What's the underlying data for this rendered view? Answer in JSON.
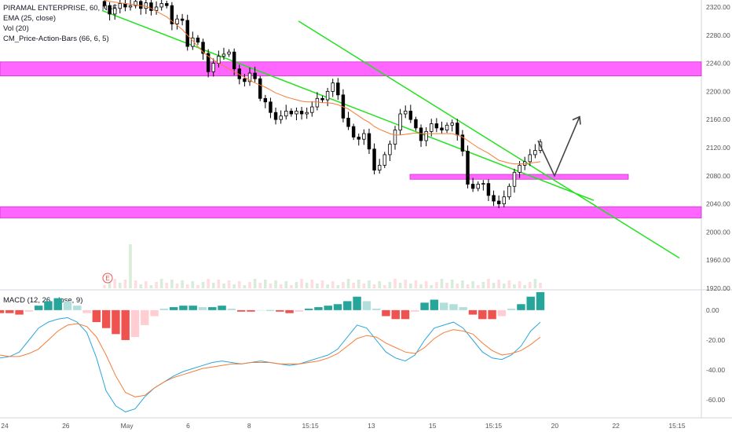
{
  "header": {
    "symbol_line": "PIRAMAL ENTERPRISE, 60, NSE",
    "indicators": [
      "EMA (25, close)",
      "Vol (20)",
      "CM_Price-Action-Bars (66, 6, 5)"
    ],
    "macd_label": "MACD (12, 26, close, 9)",
    "event_marker": "E"
  },
  "colors": {
    "up_candle": "#ffffff",
    "down_candle": "#000000",
    "ema": "#f57c38",
    "channel": "#22e21e",
    "zone": "#ff66ff",
    "macd_line": "#2ca6d9",
    "signal_line": "#f57c38",
    "hist_pos_strong": "#26a69a",
    "hist_pos_weak": "#b2dfdb",
    "hist_neg_strong": "#ef5350",
    "hist_neg_weak": "#ffcdd2"
  },
  "chart_data": [
    {
      "type": "candlestick",
      "title": "PIRAMAL ENTERPRISE, 60, NSE",
      "price_ticks": [
        "2320.00",
        "2280.00",
        "2240.00",
        "2200.00",
        "2160.00",
        "2120.00",
        "2080.00",
        "2040.00",
        "2000.00",
        "1960.00",
        "1920.00"
      ],
      "x_ticks": [
        "24",
        "26",
        "May",
        "6",
        "8",
        "15:15",
        "13",
        "15",
        "15:15",
        "20",
        "22",
        "15:15"
      ],
      "ylim": [
        1920,
        2330
      ],
      "closes": [
        2322,
        2310,
        2318,
        2325,
        2320,
        2322,
        2328,
        2318,
        2326,
        2315,
        2320,
        2325,
        2322,
        2296,
        2303,
        2301,
        2264,
        2276,
        2270,
        2254,
        2228,
        2240,
        2250,
        2253,
        2256,
        2232,
        2218,
        2214,
        2226,
        2218,
        2190,
        2185,
        2170,
        2160,
        2165,
        2172,
        2168,
        2172,
        2168,
        2170,
        2178,
        2190,
        2188,
        2200,
        2212,
        2195,
        2162,
        2150,
        2135,
        2132,
        2140,
        2118,
        2088,
        2095,
        2110,
        2125,
        2145,
        2168,
        2172,
        2160,
        2148,
        2130,
        2143,
        2154,
        2148,
        2145,
        2152,
        2155,
        2138,
        2115,
        2068,
        2062,
        2068,
        2069,
        2052,
        2044,
        2040,
        2050,
        2065,
        2085,
        2095,
        2100,
        2110,
        2116,
        2128
      ],
      "ema25": [
        2330,
        2328,
        2327,
        2326,
        2325,
        2324,
        2323,
        2322,
        2321,
        2318,
        2314,
        2310,
        2306,
        2300,
        2294,
        2288,
        2280,
        2272,
        2264,
        2256,
        2250,
        2245,
        2240,
        2236,
        2232,
        2228,
        2224,
        2220,
        2216,
        2212,
        2209,
        2206,
        2202,
        2198,
        2195,
        2192,
        2190,
        2188,
        2186,
        2185,
        2185,
        2185,
        2184,
        2184,
        2183,
        2181,
        2178,
        2175,
        2170,
        2165,
        2160,
        2156,
        2150,
        2146,
        2143,
        2140,
        2138,
        2138,
        2139,
        2140,
        2141,
        2140,
        2140,
        2140,
        2140,
        2140,
        2140,
        2140,
        2138,
        2135,
        2130,
        2125,
        2120,
        2116,
        2112,
        2107,
        2102,
        2100,
        2098,
        2097,
        2097,
        2097,
        2098,
        2099,
        2100
      ],
      "zones": [
        [
          2222,
          2242
        ],
        [
          2075,
          2082
        ],
        [
          2020,
          2036
        ]
      ],
      "channel_upper": [
        [
          2300,
          2352
        ],
        [
          1963,
          1958
        ]
      ],
      "channel_lower": [
        [
          2315,
          2298
        ],
        [
          2045,
          1950
        ]
      ],
      "arrow_path": [
        2130,
        2080,
        2164
      ]
    },
    {
      "type": "bar",
      "title": "MACD (12, 26, close, 9)",
      "y_ticks": [
        "0.00",
        "-20.00",
        "-40.00",
        "-60.00"
      ],
      "ylim": [
        -72,
        12
      ],
      "macd": [
        -32,
        -31,
        -28,
        -20,
        -12,
        -8,
        -6,
        -5,
        -8,
        -15,
        -32,
        -54,
        -64,
        -68,
        -66,
        -58,
        -52,
        -48,
        -44,
        -41,
        -39,
        -37,
        -35,
        -34,
        -35,
        -36,
        -35,
        -34,
        -35,
        -36,
        -37,
        -36,
        -34,
        -32,
        -30,
        -26,
        -18,
        -10,
        -12,
        -20,
        -28,
        -32,
        -34,
        -30,
        -20,
        -12,
        -10,
        -8,
        -12,
        -20,
        -28,
        -32,
        -33,
        -30,
        -24,
        -14,
        -8
      ],
      "signal": [
        -30,
        -31,
        -31,
        -29,
        -26,
        -20,
        -14,
        -10,
        -9,
        -11,
        -18,
        -30,
        -44,
        -55,
        -58,
        -57,
        -52,
        -48,
        -45,
        -43,
        -41,
        -39,
        -38,
        -37,
        -36,
        -36,
        -35,
        -35,
        -35,
        -36,
        -36,
        -36,
        -35,
        -34,
        -32,
        -29,
        -24,
        -19,
        -17,
        -18,
        -22,
        -25,
        -28,
        -29,
        -25,
        -19,
        -15,
        -13,
        -14,
        -16,
        -22,
        -27,
        -30,
        -29,
        -27,
        -23,
        -18
      ],
      "histogram": [
        -2,
        -2,
        -3,
        -1,
        3,
        6,
        8,
        6,
        3,
        -2,
        -8,
        -12,
        -16,
        -20,
        -18,
        -10,
        -4,
        1,
        2,
        3,
        3,
        2,
        2,
        3,
        1,
        -1,
        -1,
        0,
        0,
        -1,
        -2,
        -1,
        1,
        2,
        3,
        4,
        6,
        9,
        6,
        1,
        -4,
        -6,
        -6,
        -1,
        5,
        7,
        5,
        4,
        2,
        -3,
        -6,
        -6,
        -4,
        1,
        4,
        9,
        12
      ]
    }
  ]
}
